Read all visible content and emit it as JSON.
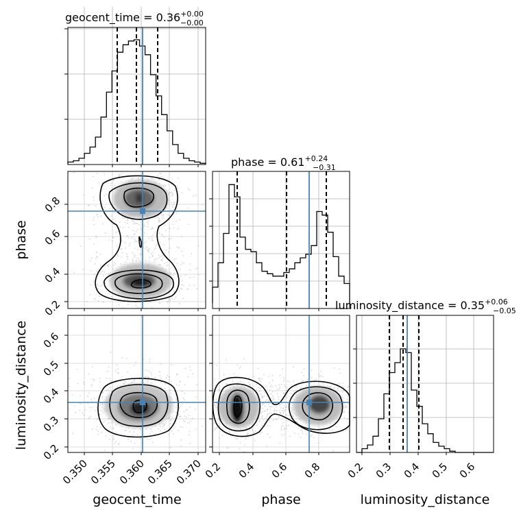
{
  "chart_data": {
    "type": "corner",
    "parameters": [
      "geocent_time",
      "phase",
      "luminosity_distance"
    ],
    "truths": {
      "geocent_time": 0.3603,
      "phase": 0.75,
      "luminosity_distance": 0.36
    },
    "truth_color": "#4682b4",
    "titles": {
      "geocent_time": {
        "prefix": "geocent_time = 0.36",
        "plus": "+0.00",
        "minus": "−0.00"
      },
      "phase": {
        "prefix": "phase = 0.61",
        "plus": "+0.24",
        "minus": "−0.31"
      },
      "luminosity_distance": {
        "prefix": "luminosity_distance = 0.35",
        "plus": "+0.06",
        "minus": "−0.05"
      }
    },
    "axis_labels": {
      "geocent_time": "geocent_time",
      "phase": "phase",
      "luminosity_distance": "luminosity_distance"
    },
    "ranges": {
      "geocent_time": [
        0.3465,
        0.3715
      ],
      "phase": [
        0.16,
        0.99
      ],
      "luminosity_distance": [
        0.175,
        0.665
      ]
    },
    "ticks": {
      "geocent_time": [
        "0.350",
        "0.355",
        "0.360",
        "0.365",
        "0.370"
      ],
      "phase": [
        "0.2",
        "0.4",
        "0.6",
        "0.8"
      ],
      "luminosity_distance": [
        "0.2",
        "0.3",
        "0.4",
        "0.5",
        "0.6"
      ]
    },
    "quantiles": {
      "geocent_time": [
        0.3555,
        0.3588,
        0.3627
      ],
      "phase": [
        0.3,
        0.61,
        0.85
      ],
      "luminosity_distance": [
        0.3,
        0.35,
        0.41
      ]
    },
    "histograms": {
      "geocent_time": {
        "edges": [
          0.3465,
          0.3475,
          0.3485,
          0.3495,
          0.3505,
          0.3515,
          0.3525,
          0.3535,
          0.3545,
          0.3555,
          0.3565,
          0.3575,
          0.3585,
          0.3595,
          0.3605,
          0.3615,
          0.3625,
          0.3635,
          0.3645,
          0.3655,
          0.3665,
          0.3675,
          0.3685,
          0.3695,
          0.3705,
          0.3715
        ],
        "counts": [
          0.02,
          0.03,
          0.05,
          0.09,
          0.14,
          0.22,
          0.38,
          0.58,
          0.75,
          0.9,
          0.96,
          0.99,
          1.0,
          0.95,
          0.88,
          0.72,
          0.55,
          0.4,
          0.27,
          0.16,
          0.09,
          0.05,
          0.03,
          0.02,
          0.01
        ]
      },
      "phase": {
        "edges": [
          0.16,
          0.1932,
          0.2264,
          0.2596,
          0.2928,
          0.326,
          0.3592,
          0.3924,
          0.4256,
          0.4588,
          0.492,
          0.5252,
          0.5584,
          0.5916,
          0.6248,
          0.658,
          0.6912,
          0.7244,
          0.7576,
          0.7908,
          0.824,
          0.8572,
          0.8904,
          0.9236,
          0.9568,
          0.99
        ],
        "counts": [
          0.13,
          0.33,
          0.57,
          0.97,
          0.87,
          0.54,
          0.44,
          0.42,
          0.33,
          0.26,
          0.24,
          0.22,
          0.22,
          0.25,
          0.28,
          0.33,
          0.37,
          0.4,
          0.47,
          0.75,
          0.72,
          0.58,
          0.38,
          0.22,
          0.16
        ]
      },
      "luminosity_distance": {
        "edges": [
          0.175,
          0.1946,
          0.2142,
          0.2338,
          0.2534,
          0.273,
          0.2926,
          0.3122,
          0.3318,
          0.3514,
          0.371,
          0.3906,
          0.4102,
          0.4298,
          0.4494,
          0.469,
          0.4886,
          0.5082,
          0.5278,
          0.5474,
          0.567,
          0.5866,
          0.6062,
          0.6258,
          0.6454,
          0.665
        ],
        "counts": [
          0.0,
          0.03,
          0.06,
          0.13,
          0.27,
          0.47,
          0.64,
          0.72,
          0.83,
          0.8,
          0.5,
          0.37,
          0.23,
          0.15,
          0.08,
          0.05,
          0.03,
          0.01,
          0.0,
          0.0,
          0.0,
          0.0,
          0.0,
          0.0,
          0.0
        ]
      }
    },
    "grid": true
  }
}
